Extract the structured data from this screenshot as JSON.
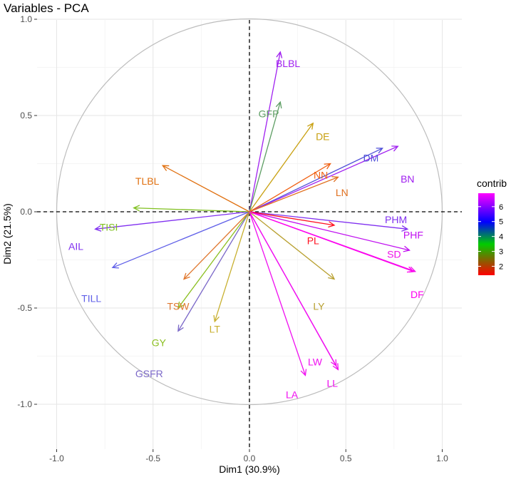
{
  "chart_data": {
    "type": "scatter",
    "subtype": "pca-variable-correlation-circle",
    "title": "Variables - PCA",
    "xlabel": "Dim1 (30.9%)",
    "ylabel": "Dim2 (21.5%)",
    "xlim": [
      -1.0,
      1.0
    ],
    "ylim": [
      -1.0,
      1.0
    ],
    "xticks": [
      -1.0,
      -0.5,
      0.0,
      0.5,
      1.0
    ],
    "yticks": [
      -1.0,
      -0.5,
      0.0,
      0.5,
      1.0
    ],
    "xtick_labels": [
      "-1.0",
      "-0.5",
      "0.0",
      "0.5",
      "1.0"
    ],
    "ytick_labels": [
      "-1.0",
      "-0.5",
      "0.0",
      "0.5",
      "1.0"
    ],
    "grid": true,
    "unit_circle": true,
    "legend": {
      "title": "contrib",
      "range": [
        1.4,
        6.9
      ],
      "ticks": [
        2,
        3,
        4,
        5,
        6
      ],
      "tick_labels": [
        "2",
        "3",
        "4",
        "5",
        "6"
      ],
      "colors": [
        "#FF0000",
        "#00CC00",
        "#0000FF",
        "#FF00FF"
      ],
      "position": "right"
    },
    "variables": [
      {
        "name": "BLBL",
        "x": 0.16,
        "y": 0.83,
        "contrib": 5.6,
        "color": "#A020F0",
        "label_x": 0.2,
        "label_y": 0.77
      },
      {
        "name": "GFP",
        "x": 0.16,
        "y": 0.57,
        "contrib": 3.6,
        "color": "#5E9E64",
        "label_x": 0.1,
        "label_y": 0.51
      },
      {
        "name": "DE",
        "x": 0.33,
        "y": 0.46,
        "contrib": 2.8,
        "color": "#C8A010",
        "label_x": 0.38,
        "label_y": 0.39
      },
      {
        "name": "DM",
        "x": 0.69,
        "y": 0.33,
        "contrib": 4.9,
        "color": "#5050D8",
        "label_x": 0.63,
        "label_y": 0.28
      },
      {
        "name": "BN",
        "x": 0.77,
        "y": 0.34,
        "contrib": 5.5,
        "color": "#A020F0",
        "label_x": 0.82,
        "label_y": 0.17
      },
      {
        "name": "NN",
        "x": 0.42,
        "y": 0.25,
        "contrib": 2.3,
        "color": "#F05F10",
        "label_x": 0.37,
        "label_y": 0.19
      },
      {
        "name": "LN",
        "x": 0.46,
        "y": 0.18,
        "contrib": 2.1,
        "color": "#E07020",
        "label_x": 0.48,
        "label_y": 0.1
      },
      {
        "name": "PHM",
        "x": 0.82,
        "y": -0.09,
        "contrib": 5.4,
        "color": "#8030F0",
        "label_x": 0.76,
        "label_y": -0.04
      },
      {
        "name": "PHF",
        "x": 0.83,
        "y": -0.2,
        "contrib": 6.1,
        "color": "#C010F0",
        "label_x": 0.85,
        "label_y": -0.12
      },
      {
        "name": "PL",
        "x": 0.44,
        "y": -0.07,
        "contrib": 1.6,
        "color": "#FF1020",
        "label_x": 0.33,
        "label_y": -0.15
      },
      {
        "name": "SD",
        "x": 0.86,
        "y": -0.31,
        "contrib": 6.5,
        "color": "#F010E8",
        "label_x": 0.75,
        "label_y": -0.22
      },
      {
        "name": "DF",
        "x": 0.85,
        "y": -0.31,
        "contrib": 6.8,
        "color": "#FF00F0",
        "label_x": 0.87,
        "label_y": -0.43
      },
      {
        "name": "LY",
        "x": 0.44,
        "y": -0.35,
        "contrib": 2.9,
        "color": "#B8A030",
        "label_x": 0.36,
        "label_y": -0.49
      },
      {
        "name": "LW",
        "x": 0.46,
        "y": -0.82,
        "contrib": 6.6,
        "color": "#F010F0",
        "label_x": 0.34,
        "label_y": -0.78
      },
      {
        "name": "LL",
        "x": 0.45,
        "y": -0.8,
        "contrib": 6.7,
        "color": "#F010F0",
        "label_x": 0.43,
        "label_y": -0.89
      },
      {
        "name": "LA",
        "x": 0.29,
        "y": -0.85,
        "contrib": 6.5,
        "color": "#F010F0",
        "label_x": 0.22,
        "label_y": -0.95
      },
      {
        "name": "LT",
        "x": -0.18,
        "y": -0.57,
        "contrib": 2.8,
        "color": "#C8B030",
        "label_x": -0.18,
        "label_y": -0.61
      },
      {
        "name": "GSFR",
        "x": -0.37,
        "y": -0.62,
        "contrib": 4.0,
        "color": "#7B68C8",
        "label_x": -0.52,
        "label_y": -0.84
      },
      {
        "name": "GY",
        "x": -0.37,
        "y": -0.5,
        "contrib": 2.8,
        "color": "#8BBF20",
        "label_x": -0.47,
        "label_y": -0.68
      },
      {
        "name": "TSW",
        "x": -0.34,
        "y": -0.35,
        "contrib": 2.0,
        "color": "#E07830",
        "label_x": -0.37,
        "label_y": -0.49
      },
      {
        "name": "TILL",
        "x": -0.71,
        "y": -0.29,
        "contrib": 4.8,
        "color": "#6060E8",
        "label_x": -0.82,
        "label_y": -0.45
      },
      {
        "name": "AIL",
        "x": -0.8,
        "y": -0.09,
        "contrib": 5.3,
        "color": "#8030F0",
        "label_x": -0.9,
        "label_y": -0.18
      },
      {
        "name": "TISI",
        "x": -0.6,
        "y": 0.02,
        "contrib": 3.1,
        "color": "#80C020",
        "label_x": -0.73,
        "label_y": -0.08
      },
      {
        "name": "TLBL",
        "x": -0.45,
        "y": 0.24,
        "contrib": 2.4,
        "color": "#E07010",
        "label_x": -0.53,
        "label_y": 0.16
      }
    ]
  }
}
